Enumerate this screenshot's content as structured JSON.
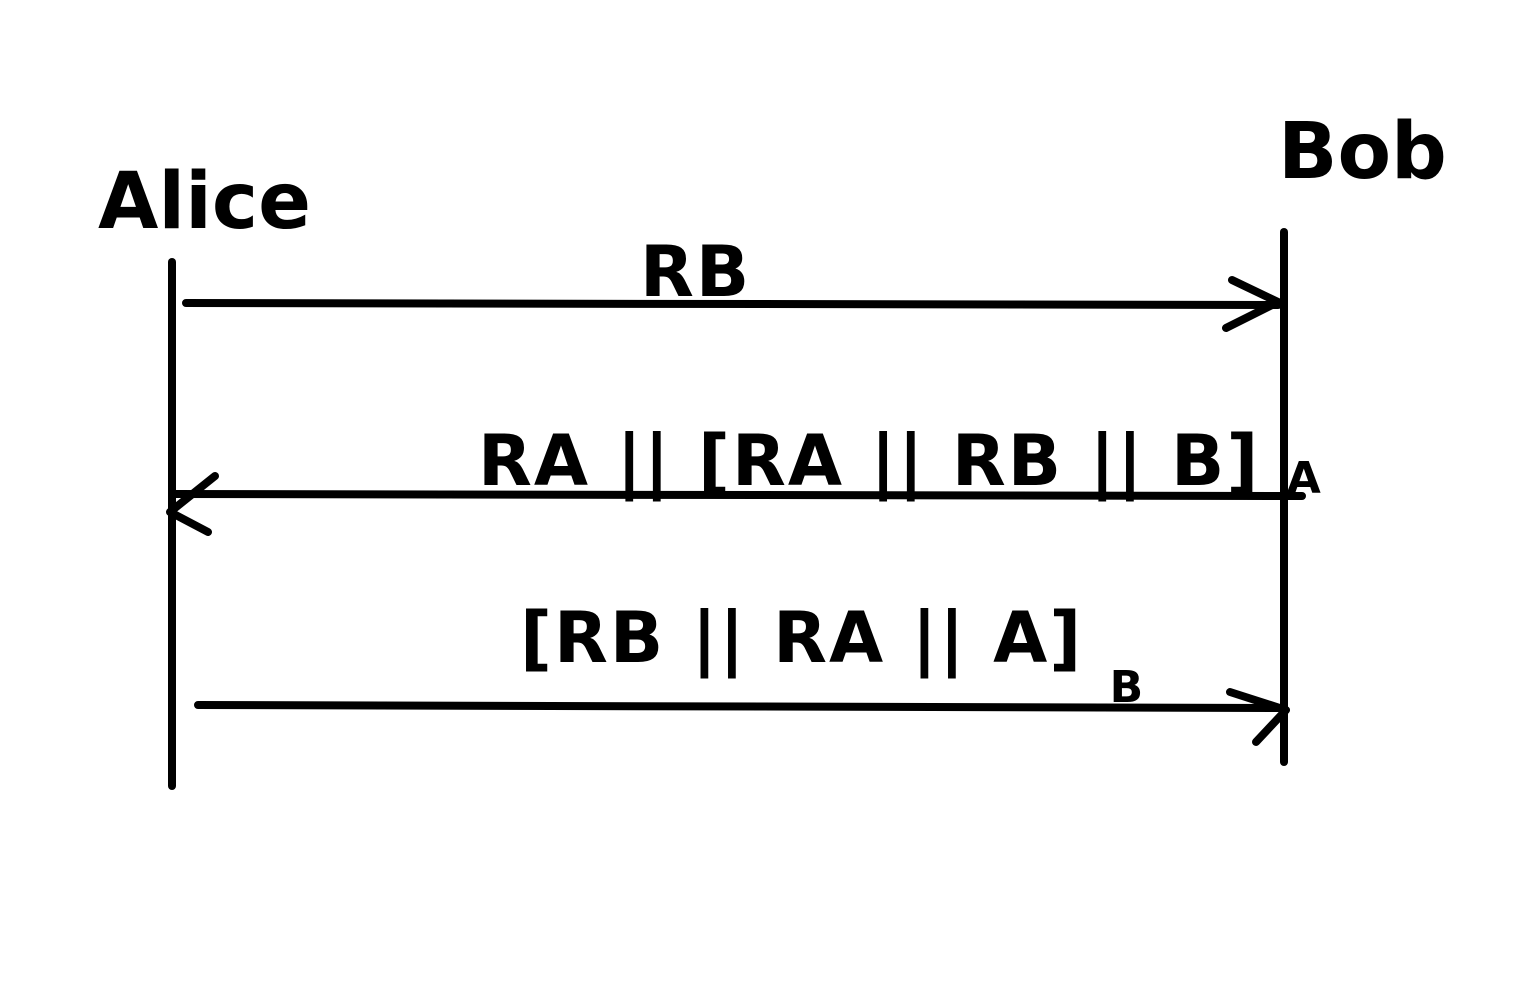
{
  "diagram": {
    "stroke_color": "#000000",
    "background_color": "#ffffff",
    "participants": [
      {
        "id": "alice",
        "label": "Alice"
      },
      {
        "id": "bob",
        "label": "Bob"
      }
    ],
    "messages": [
      {
        "from": "alice",
        "to": "bob",
        "main": "RB",
        "subscript": ""
      },
      {
        "from": "bob",
        "to": "alice",
        "main": "RA || [RA || RB || B]",
        "subscript": "A"
      },
      {
        "from": "alice",
        "to": "bob",
        "main": "[RB || RA || A]",
        "subscript": "B"
      }
    ]
  }
}
